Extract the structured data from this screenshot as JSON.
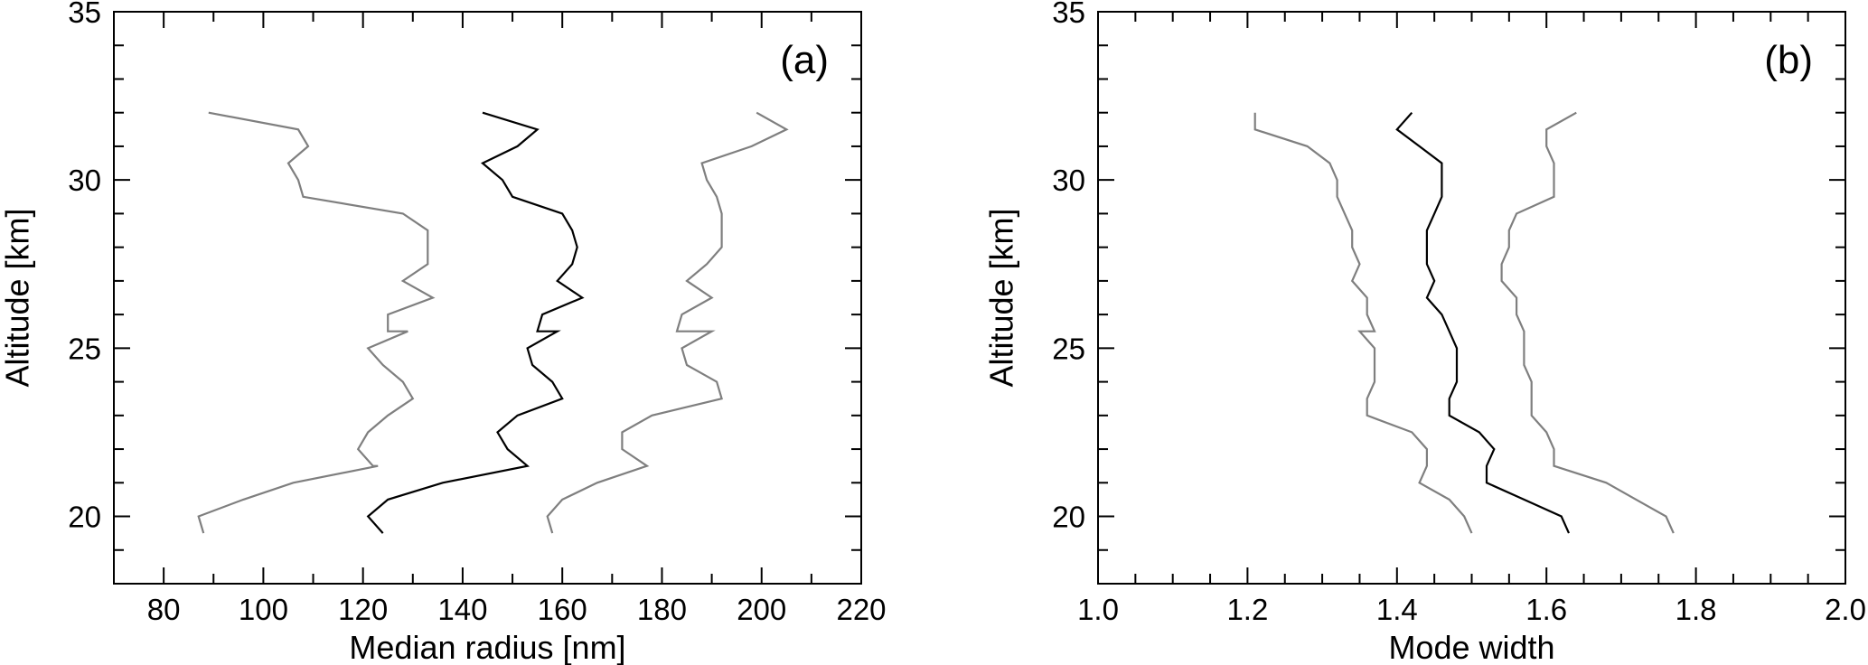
{
  "chart_data": [
    {
      "type": "line",
      "panel_label": "(a)",
      "xlabel": "Median radius [nm]",
      "ylabel": "Altitude [km]",
      "xlim": [
        70,
        220
      ],
      "ylim": [
        18,
        35
      ],
      "x_ticks_major": [
        80,
        100,
        120,
        140,
        160,
        180,
        200,
        220
      ],
      "x_tick_labels": [
        "80",
        "100",
        "120",
        "140",
        "160",
        "180",
        "200",
        "220"
      ],
      "x_minor_step": 10,
      "y_ticks_major": [
        20,
        25,
        30,
        35
      ],
      "y_tick_labels": [
        "20",
        "25",
        "30",
        "35"
      ],
      "y_minor_step": 1,
      "grid": false,
      "series": [
        {
          "color": "#7f7f7f",
          "points": [
            [
              89,
              32
            ],
            [
              107,
              31.5
            ],
            [
              109,
              31
            ],
            [
              105,
              30.5
            ],
            [
              107,
              30
            ],
            [
              108,
              29.5
            ],
            [
              128,
              29
            ],
            [
              133,
              28.5
            ],
            [
              133,
              28
            ],
            [
              133,
              27.5
            ],
            [
              128,
              27
            ],
            [
              134,
              26.5
            ],
            [
              125,
              26
            ],
            [
              125,
              25.5
            ],
            [
              129,
              25.5
            ],
            [
              121,
              25
            ],
            [
              124,
              24.5
            ],
            [
              128,
              24
            ],
            [
              130,
              23.5
            ],
            [
              125,
              23
            ],
            [
              121,
              22.5
            ],
            [
              119,
              22
            ],
            [
              122,
              21.5
            ],
            [
              123,
              21.5
            ],
            [
              106,
              21
            ],
            [
              96,
              20.5
            ],
            [
              87,
              20
            ],
            [
              88,
              19.5
            ]
          ]
        },
        {
          "color": "#000000",
          "points": [
            [
              144,
              32
            ],
            [
              155,
              31.5
            ],
            [
              151,
              31
            ],
            [
              144,
              30.5
            ],
            [
              148,
              30
            ],
            [
              150,
              29.5
            ],
            [
              160,
              29
            ],
            [
              162,
              28.5
            ],
            [
              163,
              28
            ],
            [
              162,
              27.5
            ],
            [
              159,
              27
            ],
            [
              164,
              26.5
            ],
            [
              156,
              26
            ],
            [
              155,
              25.5
            ],
            [
              159,
              25.5
            ],
            [
              153,
              25
            ],
            [
              154,
              24.5
            ],
            [
              158,
              24
            ],
            [
              160,
              23.5
            ],
            [
              151,
              23
            ],
            [
              147,
              22.5
            ],
            [
              149,
              22
            ],
            [
              153,
              21.5
            ],
            [
              136,
              21
            ],
            [
              125,
              20.5
            ],
            [
              121,
              20
            ],
            [
              124,
              19.5
            ]
          ]
        },
        {
          "color": "#7f7f7f",
          "points": [
            [
              199,
              32
            ],
            [
              205,
              31.5
            ],
            [
              198,
              31
            ],
            [
              188,
              30.5
            ],
            [
              189,
              30
            ],
            [
              191,
              29.5
            ],
            [
              192,
              29
            ],
            [
              192,
              28.5
            ],
            [
              192,
              28
            ],
            [
              189,
              27.5
            ],
            [
              185,
              27
            ],
            [
              190,
              26.5
            ],
            [
              184,
              26
            ],
            [
              183,
              25.5
            ],
            [
              190,
              25.5
            ],
            [
              184,
              25
            ],
            [
              185,
              24.5
            ],
            [
              191,
              24
            ],
            [
              192,
              23.5
            ],
            [
              178,
              23
            ],
            [
              172,
              22.5
            ],
            [
              172,
              22
            ],
            [
              177,
              21.5
            ],
            [
              167,
              21
            ],
            [
              160,
              20.5
            ],
            [
              157,
              20
            ],
            [
              158,
              19.5
            ]
          ]
        }
      ]
    },
    {
      "type": "line",
      "panel_label": "(b)",
      "xlabel": "Mode width",
      "ylabel": "Altitude [km]",
      "xlim": [
        1.0,
        2.0
      ],
      "ylim": [
        18,
        35
      ],
      "x_ticks_major": [
        1.0,
        1.2,
        1.4,
        1.6,
        1.8,
        2.0
      ],
      "x_tick_labels": [
        "1.0",
        "1.2",
        "1.4",
        "1.6",
        "1.8",
        "2.0"
      ],
      "x_minor_step": 0.05,
      "y_ticks_major": [
        20,
        25,
        30,
        35
      ],
      "y_tick_labels": [
        "20",
        "25",
        "30",
        "35"
      ],
      "y_minor_step": 1,
      "grid": false,
      "series": [
        {
          "color": "#7f7f7f",
          "points": [
            [
              1.21,
              32
            ],
            [
              1.21,
              31.5
            ],
            [
              1.28,
              31
            ],
            [
              1.31,
              30.5
            ],
            [
              1.32,
              30
            ],
            [
              1.32,
              29.5
            ],
            [
              1.33,
              29
            ],
            [
              1.34,
              28.5
            ],
            [
              1.34,
              28
            ],
            [
              1.35,
              27.5
            ],
            [
              1.34,
              27
            ],
            [
              1.36,
              26.5
            ],
            [
              1.36,
              26
            ],
            [
              1.37,
              25.5
            ],
            [
              1.35,
              25.5
            ],
            [
              1.37,
              25
            ],
            [
              1.37,
              24.5
            ],
            [
              1.37,
              24
            ],
            [
              1.36,
              23.5
            ],
            [
              1.36,
              23
            ],
            [
              1.42,
              22.5
            ],
            [
              1.44,
              22
            ],
            [
              1.44,
              21.5
            ],
            [
              1.43,
              21
            ],
            [
              1.47,
              20.5
            ],
            [
              1.49,
              20
            ],
            [
              1.5,
              19.5
            ]
          ]
        },
        {
          "color": "#000000",
          "points": [
            [
              1.42,
              32
            ],
            [
              1.4,
              31.5
            ],
            [
              1.43,
              31
            ],
            [
              1.46,
              30.5
            ],
            [
              1.46,
              30
            ],
            [
              1.46,
              29.5
            ],
            [
              1.45,
              29
            ],
            [
              1.44,
              28.5
            ],
            [
              1.44,
              28
            ],
            [
              1.44,
              27.5
            ],
            [
              1.45,
              27
            ],
            [
              1.44,
              26.5
            ],
            [
              1.46,
              26
            ],
            [
              1.47,
              25.5
            ],
            [
              1.47,
              25.5
            ],
            [
              1.48,
              25
            ],
            [
              1.48,
              24.5
            ],
            [
              1.48,
              24
            ],
            [
              1.47,
              23.5
            ],
            [
              1.47,
              23
            ],
            [
              1.51,
              22.5
            ],
            [
              1.53,
              22
            ],
            [
              1.52,
              21.5
            ],
            [
              1.52,
              21
            ],
            [
              1.57,
              20.5
            ],
            [
              1.62,
              20
            ],
            [
              1.63,
              19.5
            ]
          ]
        },
        {
          "color": "#7f7f7f",
          "points": [
            [
              1.64,
              32
            ],
            [
              1.6,
              31.5
            ],
            [
              1.6,
              31
            ],
            [
              1.61,
              30.5
            ],
            [
              1.61,
              30
            ],
            [
              1.61,
              29.5
            ],
            [
              1.56,
              29
            ],
            [
              1.55,
              28.5
            ],
            [
              1.55,
              28
            ],
            [
              1.54,
              27.5
            ],
            [
              1.54,
              27
            ],
            [
              1.56,
              26.5
            ],
            [
              1.56,
              26
            ],
            [
              1.57,
              25.5
            ],
            [
              1.57,
              25.5
            ],
            [
              1.57,
              25
            ],
            [
              1.57,
              24.5
            ],
            [
              1.58,
              24
            ],
            [
              1.58,
              23.5
            ],
            [
              1.58,
              23
            ],
            [
              1.6,
              22.5
            ],
            [
              1.61,
              22
            ],
            [
              1.61,
              21.5
            ],
            [
              1.68,
              21
            ],
            [
              1.72,
              20.5
            ],
            [
              1.76,
              20
            ],
            [
              1.77,
              19.5
            ]
          ]
        }
      ]
    }
  ]
}
